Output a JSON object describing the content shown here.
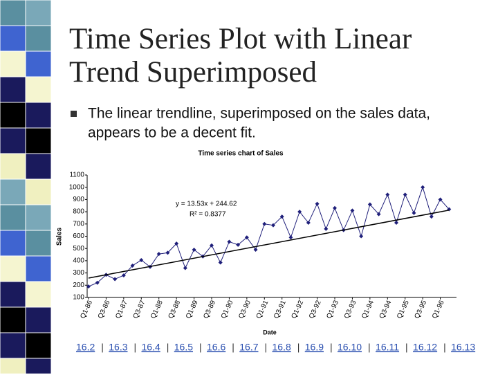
{
  "slide": {
    "title_lines": [
      "Time Series Plot with Linear",
      "Trend Superimposed"
    ],
    "bullet_lines": [
      "The linear trendline, superimposed on the sales data,",
      "appears to be a decent fit."
    ],
    "nav_links": [
      "16.2",
      "16.3",
      "16.4",
      "16.5",
      "16.6",
      "16.7",
      "16.8",
      "16.9",
      "16.10",
      "16.11",
      "16.12",
      "16.13"
    ]
  },
  "chart_data": {
    "type": "line",
    "title": "Time series chart of Sales",
    "x_label": "Date",
    "y_label": "Sales",
    "categories": [
      "Q1-86",
      null,
      "Q3-86",
      null,
      "Q1-87",
      null,
      "Q3-87",
      null,
      "Q1-88",
      null,
      "Q3-88",
      null,
      "Q1-89",
      null,
      "Q3-89",
      null,
      "Q1-90",
      null,
      "Q3-90",
      null,
      "Q1-91",
      null,
      "Q3-91",
      null,
      "Q1-92",
      null,
      "Q3-92",
      null,
      "Q1-93",
      null,
      "Q3-93",
      null,
      "Q1-94",
      null,
      "Q3-94",
      null,
      "Q1-95",
      null,
      "Q3-95",
      null,
      "Q1-96",
      null
    ],
    "series": [
      {
        "name": "Sales",
        "color": "#1f1f7a",
        "values": [
          190,
          220,
          285,
          250,
          280,
          360,
          405,
          350,
          455,
          465,
          540,
          340,
          490,
          435,
          525,
          385,
          555,
          530,
          590,
          490,
          700,
          690,
          760,
          590,
          800,
          710,
          865,
          660,
          830,
          650,
          810,
          600,
          860,
          780,
          940,
          710,
          940,
          790,
          1000,
          760,
          900,
          820
        ]
      }
    ],
    "trendline": {
      "slope": 13.53,
      "intercept": 244.62,
      "color": "#000000",
      "equation": "y = 13.53x + 244.62",
      "r_squared": "R² = 0.8377"
    },
    "ylim": [
      100,
      1100
    ],
    "yticks": [
      100,
      200,
      300,
      400,
      500,
      600,
      700,
      800,
      900,
      1000,
      1100
    ],
    "grid": false
  }
}
